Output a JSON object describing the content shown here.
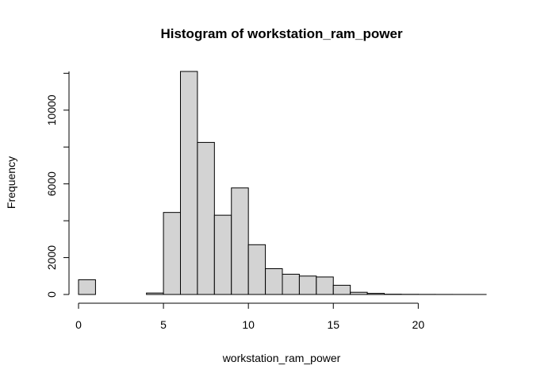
{
  "chart_data": {
    "type": "bar",
    "title": "Histogram of workstation_ram_power",
    "xlabel": "workstation_ram_power",
    "ylabel": "Frequency",
    "bin_width": 1,
    "bins": [
      {
        "start": 0,
        "end": 1,
        "count": 800
      },
      {
        "start": 1,
        "end": 2,
        "count": 0
      },
      {
        "start": 2,
        "end": 3,
        "count": 0
      },
      {
        "start": 3,
        "end": 4,
        "count": 0
      },
      {
        "start": 4,
        "end": 5,
        "count": 80
      },
      {
        "start": 5,
        "end": 6,
        "count": 4450
      },
      {
        "start": 6,
        "end": 7,
        "count": 12100
      },
      {
        "start": 7,
        "end": 8,
        "count": 8250
      },
      {
        "start": 8,
        "end": 9,
        "count": 4300
      },
      {
        "start": 9,
        "end": 10,
        "count": 5780
      },
      {
        "start": 10,
        "end": 11,
        "count": 2700
      },
      {
        "start": 11,
        "end": 12,
        "count": 1400
      },
      {
        "start": 12,
        "end": 13,
        "count": 1100
      },
      {
        "start": 13,
        "end": 14,
        "count": 1000
      },
      {
        "start": 14,
        "end": 15,
        "count": 950
      },
      {
        "start": 15,
        "end": 16,
        "count": 500
      },
      {
        "start": 16,
        "end": 17,
        "count": 120
      },
      {
        "start": 17,
        "end": 18,
        "count": 60
      },
      {
        "start": 18,
        "end": 19,
        "count": 15
      },
      {
        "start": 19,
        "end": 20,
        "count": 8
      },
      {
        "start": 20,
        "end": 21,
        "count": 5
      },
      {
        "start": 21,
        "end": 22,
        "count": 3
      },
      {
        "start": 22,
        "end": 23,
        "count": 2
      },
      {
        "start": 23,
        "end": 24,
        "count": 1
      }
    ],
    "xlim": [
      0,
      24
    ],
    "ylim": [
      0,
      12100
    ],
    "x_ticks": [
      0,
      5,
      10,
      15,
      20
    ],
    "y_ticks": [
      0,
      2000,
      6000,
      10000
    ],
    "grid": false,
    "legend": "none"
  }
}
